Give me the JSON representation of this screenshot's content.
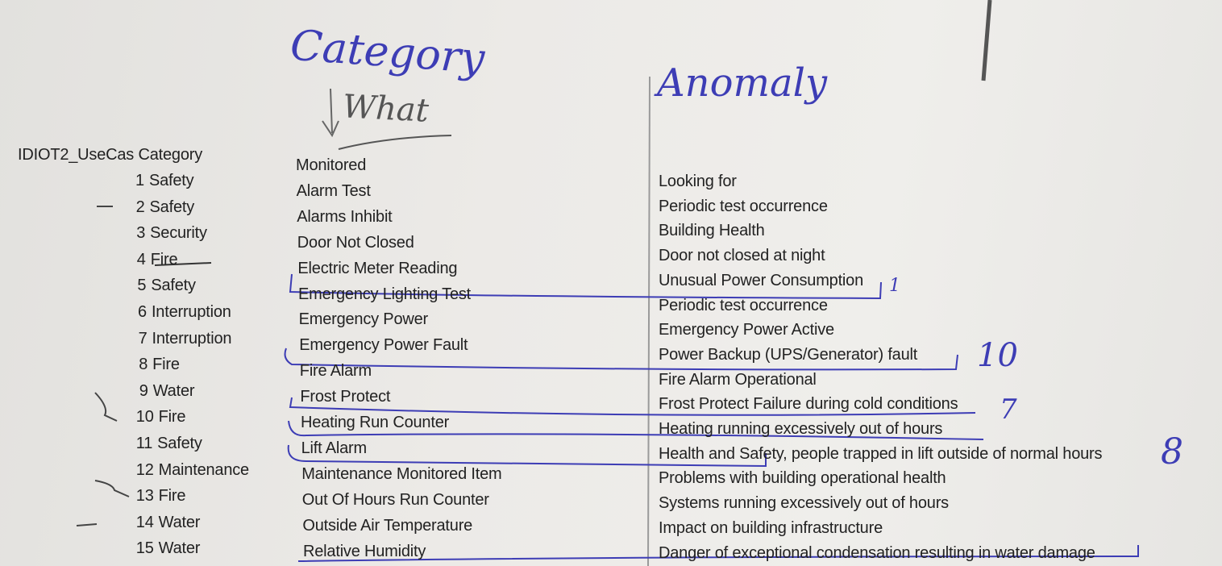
{
  "handwriting": {
    "category_heading": "Category",
    "what_heading": "What",
    "anomaly_heading": "Anomaly",
    "marks": [
      "1",
      "10",
      "7",
      "8"
    ]
  },
  "table": {
    "header": "IDIOT2_UseCas Category",
    "use_cases": [
      {
        "num": "1",
        "category": "Safety"
      },
      {
        "num": "2",
        "category": "Safety"
      },
      {
        "num": "3",
        "category": "Security"
      },
      {
        "num": "4",
        "category": "Fire",
        "struck": true
      },
      {
        "num": "5",
        "category": "Safety"
      },
      {
        "num": "6",
        "category": "Interruption"
      },
      {
        "num": "7",
        "category": "Interruption"
      },
      {
        "num": "8",
        "category": "Fire"
      },
      {
        "num": "9",
        "category": "Water"
      },
      {
        "num": "10",
        "category": "Fire"
      },
      {
        "num": "11",
        "category": "Safety"
      },
      {
        "num": "12",
        "category": "Maintenance"
      },
      {
        "num": "13",
        "category": "Fire"
      },
      {
        "num": "14",
        "category": "Water"
      },
      {
        "num": "15",
        "category": "Water"
      }
    ],
    "monitored": [
      "Monitored",
      "Alarm Test",
      "Alarms Inhibit",
      "Door Not Closed",
      "Electric Meter Reading",
      "Emergency Lighting Test",
      "Emergency Power",
      "Emergency Power Fault",
      "Fire Alarm",
      "Frost Protect",
      "Heating Run Counter",
      "Lift Alarm",
      "Maintenance Monitored Item",
      "Out Of Hours Run Counter",
      "Outside Air Temperature",
      "Relative Humidity"
    ],
    "looking_for": [
      "Looking for",
      "Periodic test occurrence",
      "Building Health",
      "Door not closed at night",
      "Unusual Power Consumption",
      "Periodic test occurrence",
      "Emergency Power Active",
      "Power Backup (UPS/Generator) fault",
      "Fire Alarm Operational",
      "Frost Protect Failure during cold conditions",
      "Heating running excessively out of hours",
      "Health and Safety, people trapped in lift outside of normal hours",
      "Problems with building operational health",
      "Systems running excessively out of hours",
      "Impact on building infrastructure",
      "Danger of exceptional condensation resulting in water damage"
    ]
  },
  "colors": {
    "ink": "#3d3db5",
    "text": "#222222",
    "paper": "#eceae7"
  }
}
